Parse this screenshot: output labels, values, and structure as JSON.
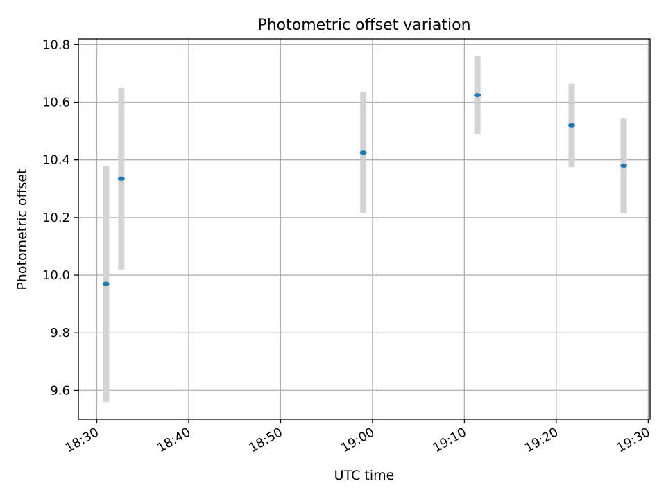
{
  "chart_data": {
    "type": "scatter",
    "title": "Photometric offset variation",
    "xlabel": "UTC time",
    "ylabel": "Photometric offset",
    "xlim": [
      "18:28",
      "19:30.2"
    ],
    "ylim": [
      9.5,
      10.82
    ],
    "x_ticks": [
      "18:30",
      "18:40",
      "18:50",
      "19:00",
      "19:10",
      "19:20",
      "19:30"
    ],
    "y_ticks": [
      "9.6",
      "9.8",
      "10.0",
      "10.2",
      "10.4",
      "10.6",
      "10.8"
    ],
    "grid": true,
    "legend": "none",
    "series": [
      {
        "points": [
          {
            "x": "18:31:00",
            "y": 9.97,
            "err": 0.41
          },
          {
            "x": "18:32:40",
            "y": 10.335,
            "err": 0.315
          },
          {
            "x": "18:59:00",
            "y": 10.425,
            "err": 0.21
          },
          {
            "x": "19:11:25",
            "y": 10.625,
            "err": 0.135
          },
          {
            "x": "19:21:40",
            "y": 10.52,
            "err": 0.145
          },
          {
            "x": "19:27:20",
            "y": 10.38,
            "err": 0.165
          }
        ]
      }
    ],
    "colors": {
      "marker": "#1f77b4",
      "errorbar": "#d3d3d3",
      "grid": "#b0b0b0",
      "axes": "#000000"
    }
  }
}
